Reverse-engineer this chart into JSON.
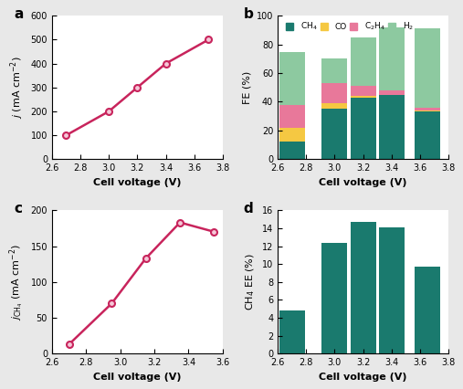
{
  "panel_a": {
    "x": [
      2.7,
      3.0,
      3.2,
      3.4,
      3.7
    ],
    "y": [
      100,
      200,
      300,
      400,
      500
    ],
    "xlabel": "Cell voltage (V)",
    "xlim": [
      2.6,
      3.8
    ],
    "ylim": [
      0,
      600
    ],
    "xticks": [
      2.6,
      2.8,
      3.0,
      3.2,
      3.4,
      3.6,
      3.8
    ],
    "yticks": [
      0,
      100,
      200,
      300,
      400,
      500,
      600
    ],
    "label": "a",
    "color": "#c8245c"
  },
  "panel_b": {
    "x": [
      2.7,
      3.0,
      3.2,
      3.4,
      3.65
    ],
    "ch4": [
      12,
      35,
      43,
      45,
      33
    ],
    "co": [
      10,
      4,
      1,
      0,
      1
    ],
    "c2h4": [
      16,
      14,
      7,
      3,
      2
    ],
    "h2": [
      37,
      17,
      34,
      44,
      55
    ],
    "colors": {
      "CH4": "#1a7a6e",
      "CO": "#f5c842",
      "C2H4": "#e8789a",
      "H2": "#8dc9a0"
    },
    "xlabel": "Cell voltage (V)",
    "ylabel": "FE (%)",
    "xlim": [
      2.6,
      3.8
    ],
    "ylim": [
      0,
      100
    ],
    "xticks": [
      2.6,
      2.8,
      3.0,
      3.2,
      3.4,
      3.6,
      3.8
    ],
    "yticks": [
      0,
      20,
      40,
      60,
      80,
      100
    ],
    "label": "b",
    "bar_width": 0.18
  },
  "panel_c": {
    "x": [
      2.7,
      2.95,
      3.15,
      3.35,
      3.55
    ],
    "y": [
      13,
      70,
      133,
      183,
      170
    ],
    "xlabel": "Cell voltage (V)",
    "xlim": [
      2.6,
      3.6
    ],
    "ylim": [
      0,
      200
    ],
    "xticks": [
      2.6,
      2.8,
      3.0,
      3.2,
      3.4,
      3.6
    ],
    "yticks": [
      0,
      50,
      100,
      150,
      200
    ],
    "label": "c",
    "color": "#c8245c"
  },
  "panel_d": {
    "x": [
      2.7,
      3.0,
      3.2,
      3.4,
      3.65
    ],
    "y": [
      4.85,
      12.4,
      14.75,
      14.1,
      9.75
    ],
    "xlabel": "Cell voltage (V)",
    "xlim": [
      2.6,
      3.8
    ],
    "ylim": [
      0,
      16
    ],
    "xticks": [
      2.6,
      2.8,
      3.0,
      3.2,
      3.4,
      3.6,
      3.8
    ],
    "yticks": [
      0,
      2,
      4,
      6,
      8,
      10,
      12,
      14,
      16
    ],
    "label": "d",
    "color": "#1a7a6e",
    "bar_width": 0.18
  },
  "bg_color": "#e8e8e8"
}
